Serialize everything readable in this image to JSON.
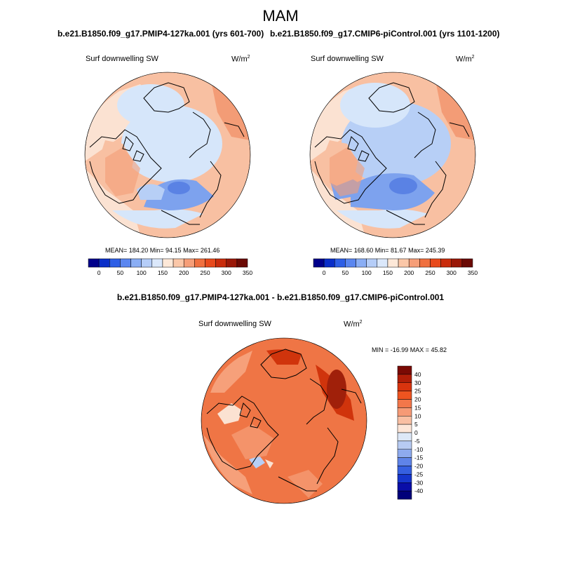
{
  "title": "MAM",
  "left_panel": {
    "title": "b.e21.B1850.f09_g17.PMIP4-127ka.001 (yrs 601-700)",
    "variable": "Surf downwelling SW",
    "units_base": "W/m",
    "units_exp": "2",
    "stats": "MEAN= 184.20  Min=  94.15  Max= 261.46"
  },
  "right_panel": {
    "title": "b.e21.B1850.f09_g17.CMIP6-piControl.001 (yrs 1101-1200)",
    "variable": "Surf downwelling SW",
    "units_base": "W/m",
    "units_exp": "2",
    "stats": "MEAN= 168.60  Min=  81.67  Max= 245.39"
  },
  "abs_colorbar": {
    "labels": [
      "0",
      "50",
      "100",
      "150",
      "200",
      "250",
      "300",
      "350"
    ],
    "colors": [
      "#00008b",
      "#0a2ec8",
      "#2e5fe6",
      "#5a86f0",
      "#8aaef5",
      "#b5cdf8",
      "#dbe8fb",
      "#fde8d8",
      "#fbc7a8",
      "#f69e78",
      "#f0703f",
      "#e84a1c",
      "#c92c0c",
      "#9a1808",
      "#6b0a04"
    ]
  },
  "diff_panel": {
    "title": "b.e21.B1850.f09_g17.PMIP4-127ka.001 - b.e21.B1850.f09_g17.CMIP6-piControl.001",
    "variable": "Surf downwelling SW",
    "units_base": "W/m",
    "units_exp": "2",
    "stats": "MIN = -16.99 MAX =  45.82"
  },
  "diff_colorbar": {
    "labels": [
      "40",
      "30",
      "25",
      "20",
      "15",
      "10",
      "5",
      "0",
      "-5",
      "-10",
      "-15",
      "-20",
      "-25",
      "-30",
      "-40"
    ],
    "colors": [
      "#7a0a04",
      "#b01e08",
      "#d8340e",
      "#ee5420",
      "#f3774a",
      "#f69a76",
      "#f9bfa3",
      "#fde6d8",
      "#dde8f7",
      "#b7cbf3",
      "#8eaaee",
      "#5f84e8",
      "#3660e0",
      "#1636cc",
      "#0a0ea8",
      "#00007a"
    ]
  },
  "colors": {
    "coast": "#000000",
    "cold": "#d6e6fa",
    "cool": "#b7cff6",
    "blue_mid": "#7da2ee",
    "blue_dark": "#5a82e4",
    "warm_light": "#fbe2d2",
    "warm": "#f8c0a2",
    "warm_mid": "#f39c76",
    "diff_base": "#ef7545",
    "diff_light": "#f6a07a",
    "diff_dark": "#d0340c",
    "diff_darkest": "#a0200a"
  }
}
